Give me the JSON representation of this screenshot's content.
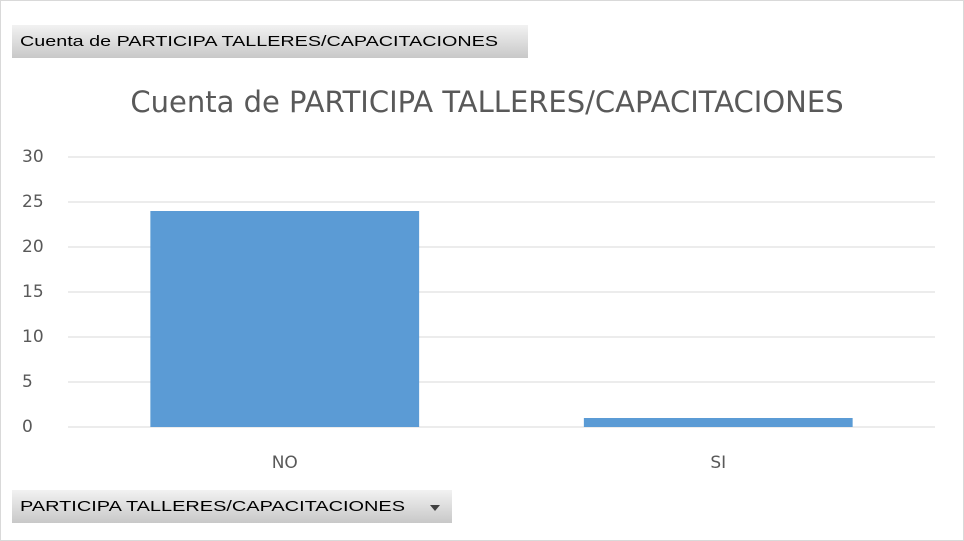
{
  "chart_data": {
    "type": "bar",
    "value_field": "Cuenta de PARTICIPA TALLERES/CAPACITACIONES",
    "title": "Cuenta de PARTICIPA TALLERES/CAPACITACIONES",
    "axis_field": "PARTICIPA TALLERES/CAPACITACIONES",
    "categories": [
      "NO",
      "SI"
    ],
    "values": [
      24,
      1
    ],
    "color": "#5b9bd5",
    "ylim": [
      0,
      30
    ],
    "yticks": [
      0,
      5,
      10,
      15,
      20,
      25,
      30
    ],
    "grid": true
  }
}
